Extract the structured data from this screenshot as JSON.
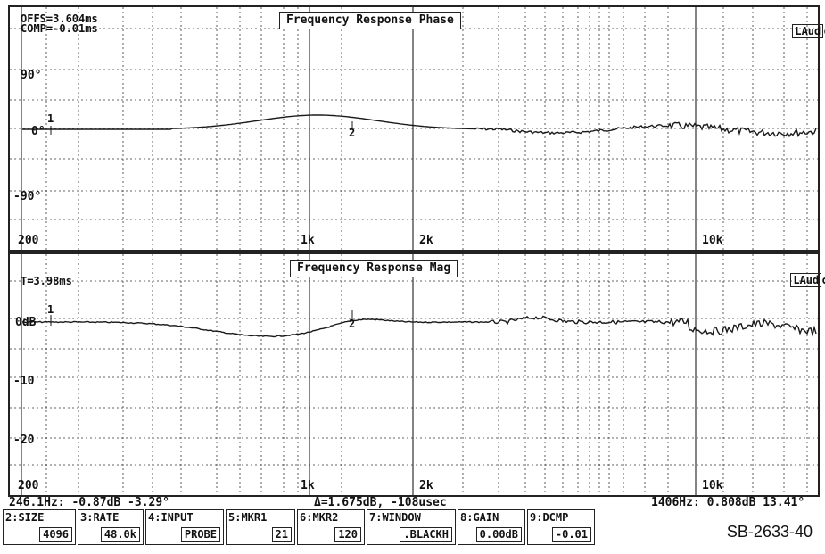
{
  "phase_panel": {
    "offset_text": "OFFS=3.604ms",
    "comp_text": "COMP=-0.01ms",
    "title": "Frequency Response Phase",
    "laud": "LAud",
    "laud_suffix": "c",
    "y_labels": [
      "90°",
      "0°",
      "-90°"
    ],
    "x_labels": [
      "200",
      "1k",
      "2k",
      "10k"
    ],
    "marker1": "1",
    "marker2": "2"
  },
  "mag_panel": {
    "time_text": "T=3.98ms",
    "title": "Frequency Response Mag",
    "laud": "LAud",
    "laud_suffix": "c",
    "y_labels": [
      "0dB",
      "-10",
      "-20"
    ],
    "x_labels": [
      "200",
      "1k",
      "2k",
      "10k"
    ],
    "marker1": "1",
    "marker2": "2"
  },
  "status_line": {
    "marker1_readout": "246.1Hz: -0.87dB -3.29°",
    "delta_readout": "Δ=1.675dB, -108usec",
    "marker2_readout": "1406Hz: 0.808dB 13.41°"
  },
  "softkeys": [
    {
      "label": "2:SIZE",
      "value": "4096"
    },
    {
      "label": "3:RATE",
      "value": "48.0k"
    },
    {
      "label": "4:INPUT",
      "value": "PROBE"
    },
    {
      "label": "5:MKR1",
      "value": "21"
    },
    {
      "label": "6:MKR2",
      "value": "120"
    },
    {
      "label": "7:WINDOW",
      "value": ".BLACKH"
    },
    {
      "label": "8:GAIN",
      "value": "0.00dB"
    },
    {
      "label": "9:DCMP",
      "value": "-0.01"
    }
  ],
  "figure_code": "SB-2633-40",
  "colors": {
    "trace": "#1a1a1a",
    "grid": "#333333",
    "background": "#ffffff"
  }
}
